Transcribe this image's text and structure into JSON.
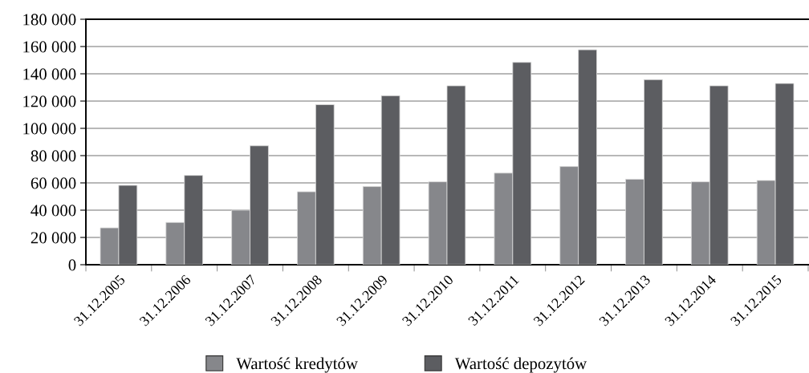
{
  "chart_data": {
    "type": "bar",
    "categories": [
      "31.12.2005",
      "31.12.2006",
      "31.12.2007",
      "31.12.2008",
      "31.12.2009",
      "31.12.2010",
      "31.12.2011",
      "31.12.2012",
      "31.12.2013",
      "31.12.2014",
      "31.12.2015"
    ],
    "series": [
      {
        "name": "Wartość kredytów",
        "color": "#86878b",
        "values": [
          27000,
          31000,
          40000,
          53500,
          57300,
          60800,
          67200,
          72000,
          62700,
          60800,
          61800
        ]
      },
      {
        "name": "Wartość depozytów",
        "color": "#5c5d61",
        "values": [
          58200,
          65500,
          87200,
          117400,
          123900,
          131200,
          148400,
          157600,
          135700,
          131200,
          132900
        ]
      }
    ],
    "ylim": [
      0,
      180000
    ],
    "yticks": [
      {
        "value": 0,
        "label": "0"
      },
      {
        "value": 20000,
        "label": "20 000"
      },
      {
        "value": 40000,
        "label": "40 000"
      },
      {
        "value": 60000,
        "label": "60 000"
      },
      {
        "value": 80000,
        "label": "80 000"
      },
      {
        "value": 100000,
        "label": "100 000"
      },
      {
        "value": 120000,
        "label": "120 000"
      },
      {
        "value": 140000,
        "label": "140 000"
      },
      {
        "value": 160000,
        "label": "160 000"
      },
      {
        "value": 180000,
        "label": "180 000"
      }
    ],
    "grid": "y",
    "legend": "bottom"
  }
}
